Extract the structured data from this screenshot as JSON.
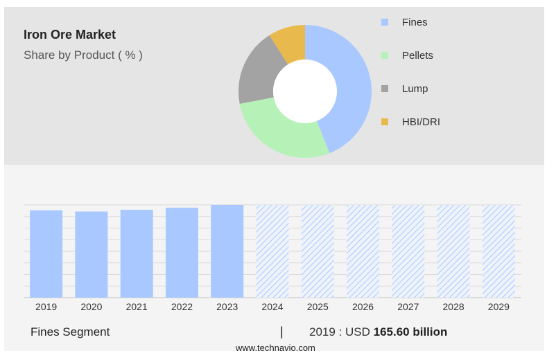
{
  "header": {
    "title": "Iron Ore Market",
    "subtitle": "Share by Product ( % )"
  },
  "footer": {
    "segment_label": "Fines Segment",
    "separator": "|",
    "year_label": "2019 : USD",
    "value_label": "165.60 billion",
    "source": "www.technavio.com"
  },
  "chart_data": [
    {
      "type": "pie",
      "style": "donut",
      "title": "Share by Product ( % )",
      "labels": [
        "Fines",
        "Pellets",
        "Lump",
        "HBI/DRI"
      ],
      "values": [
        44,
        28,
        19,
        9
      ],
      "colors": [
        "#a9c8ff",
        "#b6f2b8",
        "#a3a3a3",
        "#e8b94c"
      ],
      "legend_position": "right"
    },
    {
      "type": "bar",
      "categories": [
        "2019",
        "2020",
        "2021",
        "2022",
        "2023",
        "2024",
        "2025",
        "2026",
        "2027",
        "2028",
        "2029"
      ],
      "values": [
        165.6,
        163.5,
        166.7,
        170.5,
        176.0,
        null,
        null,
        null,
        null,
        null,
        null
      ],
      "forecast_years": [
        "2024",
        "2025",
        "2026",
        "2027",
        "2028",
        "2029"
      ],
      "bar_color": "#a9c8ff",
      "forecast_pattern_color": "#a9c8ff",
      "grid": true,
      "ylim": [
        0,
        176
      ]
    }
  ]
}
